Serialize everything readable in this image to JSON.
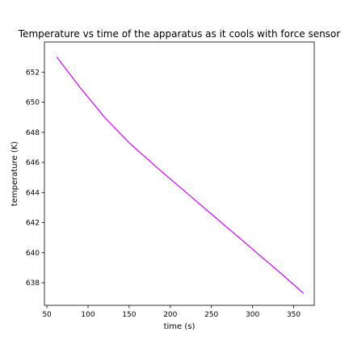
{
  "chart_data": {
    "type": "line",
    "title": "Temperature vs time of the apparatus as it cools with force sensor",
    "xlabel": "time (s)",
    "ylabel": "temperature (K)",
    "xlim": [
      47,
      375
    ],
    "ylim": [
      636.5,
      654.0
    ],
    "xticks": [
      50,
      100,
      150,
      200,
      250,
      300,
      350
    ],
    "yticks": [
      638,
      640,
      642,
      644,
      646,
      648,
      650,
      652
    ],
    "grid": false,
    "series": [
      {
        "color": "#cc00ff",
        "x": [
          62,
          90,
          120,
          150,
          185,
          215,
          245,
          275,
          305,
          335,
          362
        ],
        "y": [
          653.0,
          651.0,
          649.0,
          647.3,
          645.6,
          644.2,
          642.8,
          641.4,
          640.0,
          638.6,
          637.3
        ]
      }
    ]
  }
}
